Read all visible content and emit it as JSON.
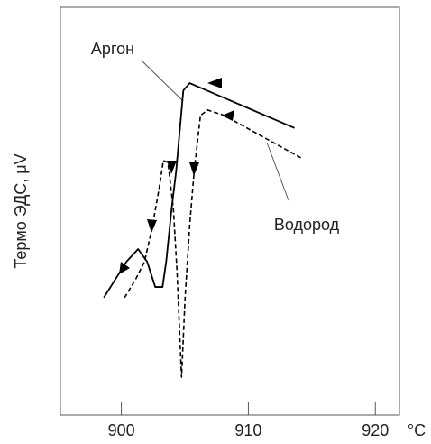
{
  "chart_data": {
    "type": "line",
    "y_label": "Термо ЭДС, μV",
    "x_unit": "°C",
    "xlim": [
      895.2,
      921.9
    ],
    "xticks": [
      900,
      910,
      920
    ],
    "ylim": [
      0,
      100
    ],
    "annotations": [
      "Аргон",
      "Водород"
    ],
    "series": [
      {
        "name": "Аргон",
        "color": "#000000",
        "dashed": false,
        "x": [
          913.63,
          905.38,
          904.88,
          904.31,
          903.95,
          903.53,
          903.24,
          902.67,
          902.03,
          901.32,
          900.4,
          898.62
        ],
        "values": [
          70.4,
          81.4,
          79.6,
          59.7,
          50.4,
          37.6,
          31.4,
          31.4,
          37.6,
          40.7,
          37.6,
          28.8
        ]
      },
      {
        "name": "Водород",
        "color": "#000000",
        "dashed": true,
        "x": [
          914.13,
          908.08,
          906.8,
          906.23,
          905.73,
          905.38,
          905.02,
          904.74,
          904.38,
          904.1,
          903.67,
          903.31,
          902.96,
          902.39,
          901.82,
          901.11,
          900.25
        ],
        "values": [
          63.1,
          73.5,
          74.8,
          73.5,
          59.7,
          46.5,
          28.8,
          9.3,
          35.4,
          50.4,
          61.9,
          62.4,
          55.3,
          45.4,
          37.6,
          33.2,
          28.8
        ]
      }
    ]
  }
}
